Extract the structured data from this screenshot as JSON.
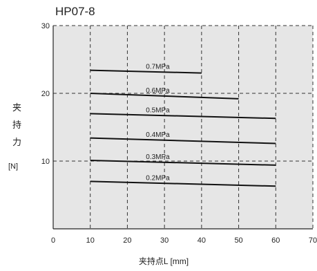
{
  "chart_data": {
    "type": "line",
    "title": "HP07-8",
    "xlabel": "夹持点L [mm]",
    "ylabel_chars": [
      "夹",
      "持",
      "力"
    ],
    "ylabel_unit": "[N]",
    "xlim": [
      0,
      70
    ],
    "ylim": [
      0,
      30
    ],
    "x_ticks": [
      "0",
      "10",
      "20",
      "30",
      "40",
      "50",
      "60",
      "70"
    ],
    "y_ticks": [
      "10",
      "20",
      "30"
    ],
    "grid": true,
    "plot_background": "#e6e6e6",
    "line_color": "#111111",
    "series": [
      {
        "name": "0.7MPa",
        "x": [
          10,
          40
        ],
        "y": [
          23.4,
          23.0
        ]
      },
      {
        "name": "0.6MPa",
        "x": [
          10,
          50
        ],
        "y": [
          20.0,
          19.2
        ]
      },
      {
        "name": "0.5MPa",
        "x": [
          10,
          60
        ],
        "y": [
          17.0,
          16.3
        ]
      },
      {
        "name": "0.4MPa",
        "x": [
          10,
          60
        ],
        "y": [
          13.4,
          12.6
        ]
      },
      {
        "name": "0.3MPa",
        "x": [
          10,
          60
        ],
        "y": [
          10.1,
          9.4
        ]
      },
      {
        "name": "0.2MPa",
        "x": [
          10,
          60
        ],
        "y": [
          7.0,
          6.3
        ]
      }
    ]
  }
}
